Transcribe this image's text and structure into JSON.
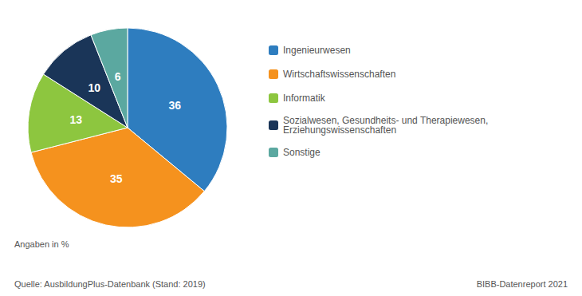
{
  "chart_data": {
    "type": "pie",
    "categories": [
      "Ingenieurwesen",
      "Wirtschaftswissenschaften",
      "Informatik",
      "Sozialwesen, Gesundheits- und Therapiewesen,\nErziehungswissenschaften",
      "Sonstige"
    ],
    "values": [
      36,
      35,
      13,
      10,
      6
    ],
    "colors": [
      "#2e7dbf",
      "#f5921e",
      "#8dc63f",
      "#1a3558",
      "#5ba8a0"
    ],
    "data_labels": true,
    "legend": "right",
    "annotations": [
      "Angaben in %",
      "Quelle: AusbildungPlus-Datenbank (Stand: 2019)",
      "BIBB-Datenreport 2021"
    ]
  }
}
